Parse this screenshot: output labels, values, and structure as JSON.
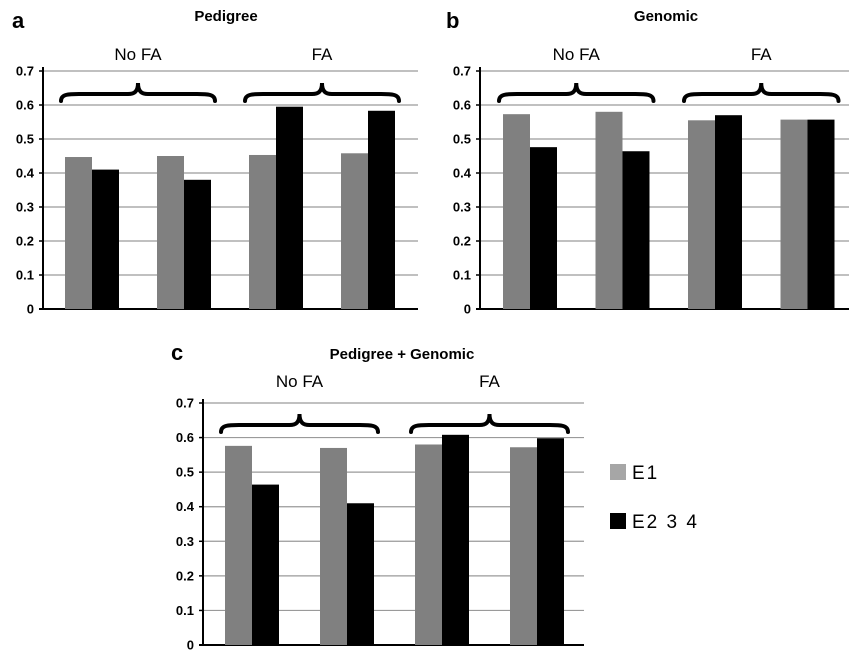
{
  "chart_data": [
    {
      "type": "bar",
      "panel": "a",
      "title": "Pedigree",
      "ylim": [
        0,
        0.7
      ],
      "yticks": [
        "0",
        "0.1",
        "0.2",
        "0.3",
        "0.4",
        "0.5",
        "0.6",
        "0.7"
      ],
      "grid": true,
      "groups": [
        {
          "label": "No FA",
          "categories": [
            0,
            1
          ]
        },
        {
          "label": "FA",
          "categories": [
            2,
            3
          ]
        }
      ],
      "series": [
        {
          "name": "E1",
          "color": "#808080",
          "values": [
            0.447,
            0.45,
            0.453,
            0.458
          ]
        },
        {
          "name": "E2 3 4",
          "color": "#000000",
          "values": [
            0.41,
            0.38,
            0.595,
            0.583
          ]
        }
      ]
    },
    {
      "type": "bar",
      "panel": "b",
      "title": "Genomic",
      "ylim": [
        0,
        0.7
      ],
      "yticks": [
        "0",
        "0.1",
        "0.2",
        "0.3",
        "0.4",
        "0.5",
        "0.6",
        "0.7"
      ],
      "grid": true,
      "groups": [
        {
          "label": "No FA",
          "categories": [
            0,
            1
          ]
        },
        {
          "label": "FA",
          "categories": [
            2,
            3
          ]
        }
      ],
      "series": [
        {
          "name": "E1",
          "color": "#808080",
          "values": [
            0.573,
            0.58,
            0.555,
            0.557
          ]
        },
        {
          "name": "E2 3 4",
          "color": "#000000",
          "values": [
            0.476,
            0.464,
            0.57,
            0.557
          ]
        }
      ]
    },
    {
      "type": "bar",
      "panel": "c",
      "title": "Pedigree + Genomic",
      "ylim": [
        0,
        0.7
      ],
      "yticks": [
        "0",
        "0.1",
        "0.2",
        "0.3",
        "0.4",
        "0.5",
        "0.6",
        "0.7"
      ],
      "grid": true,
      "groups": [
        {
          "label": "No FA",
          "categories": [
            0,
            1
          ]
        },
        {
          "label": "FA",
          "categories": [
            2,
            3
          ]
        }
      ],
      "series": [
        {
          "name": "E1",
          "color": "#808080",
          "values": [
            0.576,
            0.57,
            0.58,
            0.572
          ]
        },
        {
          "name": "E2 3 4",
          "color": "#000000",
          "values": [
            0.464,
            0.41,
            0.608,
            0.598
          ]
        }
      ]
    }
  ],
  "legend": {
    "placement": "right",
    "items": [
      {
        "label": "E1",
        "color": "#a6a6a6"
      },
      {
        "label": "E2 3 4",
        "color": "#000000"
      }
    ]
  }
}
